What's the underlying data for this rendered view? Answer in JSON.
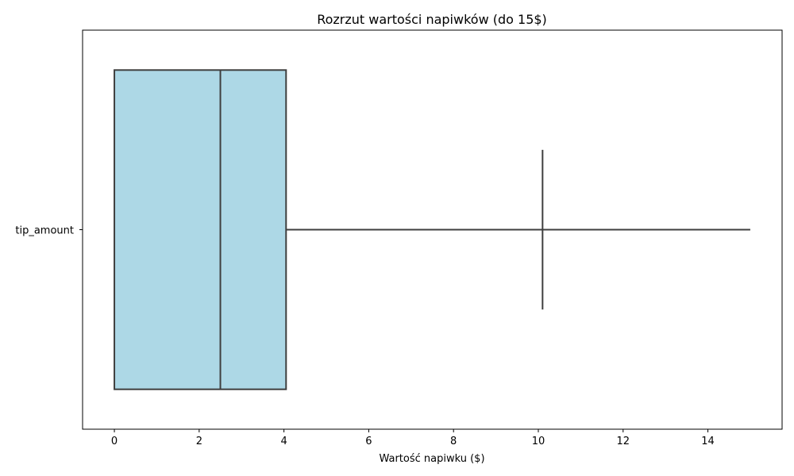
{
  "chart_data": {
    "type": "boxplot",
    "orientation": "horizontal",
    "title": "Rozrzut wartości napiwków (do 15$)",
    "xlabel": "Wartość napiwku ($)",
    "ylabel": "",
    "xlim": [
      -0.75,
      15.75
    ],
    "xticks": [
      0,
      2,
      4,
      6,
      8,
      10,
      12,
      14
    ],
    "categories": [
      "tip_amount"
    ],
    "boxes": [
      {
        "category": "tip_amount",
        "min": 0,
        "q1": 0,
        "median": 2.5,
        "q3": 4.05,
        "max": 15,
        "marker_x": 10.1
      }
    ],
    "box_color": "#add8e6",
    "line_color": "#3f3f3f",
    "grid": false,
    "legend": "none"
  }
}
